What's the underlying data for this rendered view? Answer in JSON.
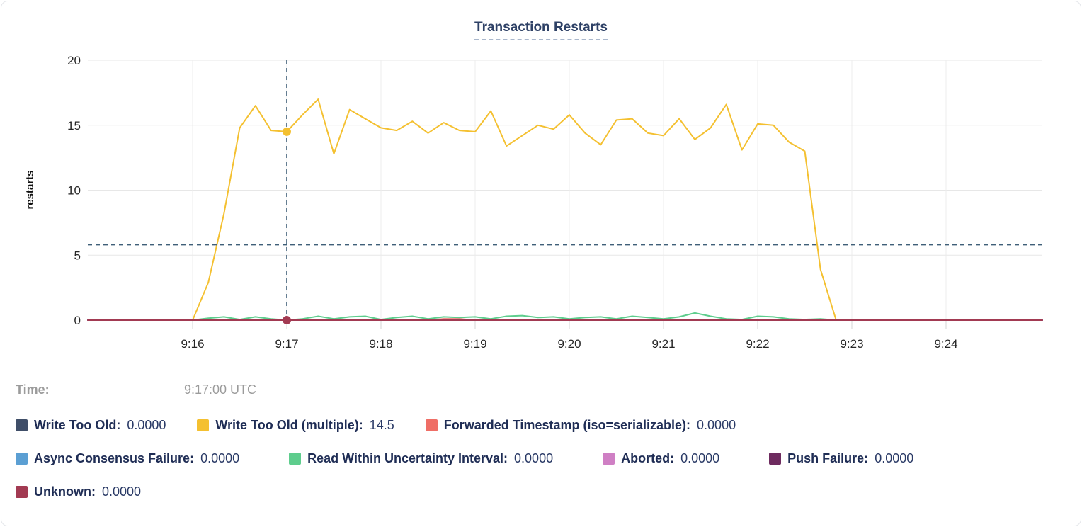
{
  "chart_data": {
    "type": "line",
    "title": "Transaction Restarts",
    "ylabel": "restarts",
    "ylim": [
      0,
      20
    ],
    "yticks": [
      0,
      5,
      10,
      15,
      20
    ],
    "xticks": [
      "9:16",
      "9:17",
      "9:18",
      "9:19",
      "9:20",
      "9:21",
      "9:22",
      "9:23",
      "9:24"
    ],
    "x_start": "9:16:00 UTC",
    "x_step_seconds": 10,
    "grid": true,
    "legend_position": "bottom",
    "series": [
      {
        "name": "Write Too Old",
        "color": "#3f4e68",
        "flat": 0
      },
      {
        "name": "Write Too Old (multiple)",
        "color": "#f4c030",
        "values": [
          0,
          2.9,
          8.2,
          14.8,
          16.5,
          14.6,
          14.5,
          15.8,
          17.0,
          12.8,
          16.2,
          15.5,
          14.8,
          14.6,
          15.3,
          14.4,
          15.2,
          14.6,
          14.5,
          16.1,
          13.4,
          14.2,
          15.0,
          14.7,
          15.8,
          14.4,
          13.5,
          15.4,
          15.5,
          14.4,
          14.2,
          15.5,
          13.9,
          14.8,
          16.6,
          13.1,
          15.1,
          15.0,
          13.7,
          13.0,
          3.9,
          0
        ]
      },
      {
        "name": "Forwarded Timestamp (iso=serializable)",
        "color": "#ef6e66",
        "values": [
          0,
          0,
          0,
          0,
          0,
          0,
          0,
          0,
          0,
          0,
          0,
          0,
          0,
          0,
          0,
          0,
          0.1,
          0.1,
          0,
          0,
          0,
          0,
          0,
          0,
          0,
          0,
          0,
          0,
          0,
          0,
          0,
          0,
          0,
          0,
          0,
          0,
          0,
          0,
          0,
          0,
          0,
          0
        ]
      },
      {
        "name": "Async Consensus Failure",
        "color": "#5b9fd3",
        "flat": 0
      },
      {
        "name": "Read Within Uncertainty Interval",
        "color": "#5ecd8d",
        "values": [
          0,
          0.15,
          0.25,
          0.05,
          0.25,
          0.1,
          0,
          0.1,
          0.3,
          0.1,
          0.25,
          0.3,
          0.05,
          0.2,
          0.3,
          0.1,
          0.25,
          0.2,
          0.25,
          0.1,
          0.3,
          0.35,
          0.2,
          0.25,
          0.1,
          0.2,
          0.25,
          0.1,
          0.3,
          0.2,
          0.1,
          0.25,
          0.55,
          0.3,
          0.1,
          0.05,
          0.3,
          0.25,
          0.1,
          0.05,
          0.1,
          0
        ]
      },
      {
        "name": "Aborted",
        "color": "#cf7fc4",
        "flat": 0
      },
      {
        "name": "Push Failure",
        "color": "#6e2b5f",
        "flat": 0
      },
      {
        "name": "Unknown",
        "color": "#a23a52",
        "flat": 0
      }
    ],
    "crosshair": {
      "x_tick_index": 1,
      "time": "9:17:00 UTC",
      "y_guideline_value": 5.8,
      "highlight_points": [
        {
          "series": "Write Too Old (multiple)",
          "value": 14.5
        },
        {
          "series": "Unknown",
          "value": 0
        }
      ]
    }
  },
  "tooltip": {
    "time_label": "Time:",
    "time_value": "9:17:00 UTC"
  },
  "legend": {
    "rows": [
      [
        {
          "label": "Write Too Old:",
          "value": "0.0000",
          "color": "#3f4e68"
        },
        {
          "label": "Write Too Old (multiple):",
          "value": "14.5",
          "color": "#f4c030"
        },
        {
          "label": "Forwarded Timestamp (iso=serializable):",
          "value": "0.0000",
          "color": "#ef6e66"
        }
      ],
      [
        {
          "label": "Async Consensus Failure:",
          "value": "0.0000",
          "color": "#5b9fd3"
        },
        {
          "label": "Read Within Uncertainty Interval:",
          "value": "0.0000",
          "color": "#5ecd8d"
        },
        {
          "label": "Aborted:",
          "value": "0.0000",
          "color": "#cf7fc4"
        },
        {
          "label": "Push Failure:",
          "value": "0.0000",
          "color": "#6e2b5f"
        }
      ],
      [
        {
          "label": "Unknown:",
          "value": "0.0000",
          "color": "#a23a52"
        }
      ]
    ]
  }
}
